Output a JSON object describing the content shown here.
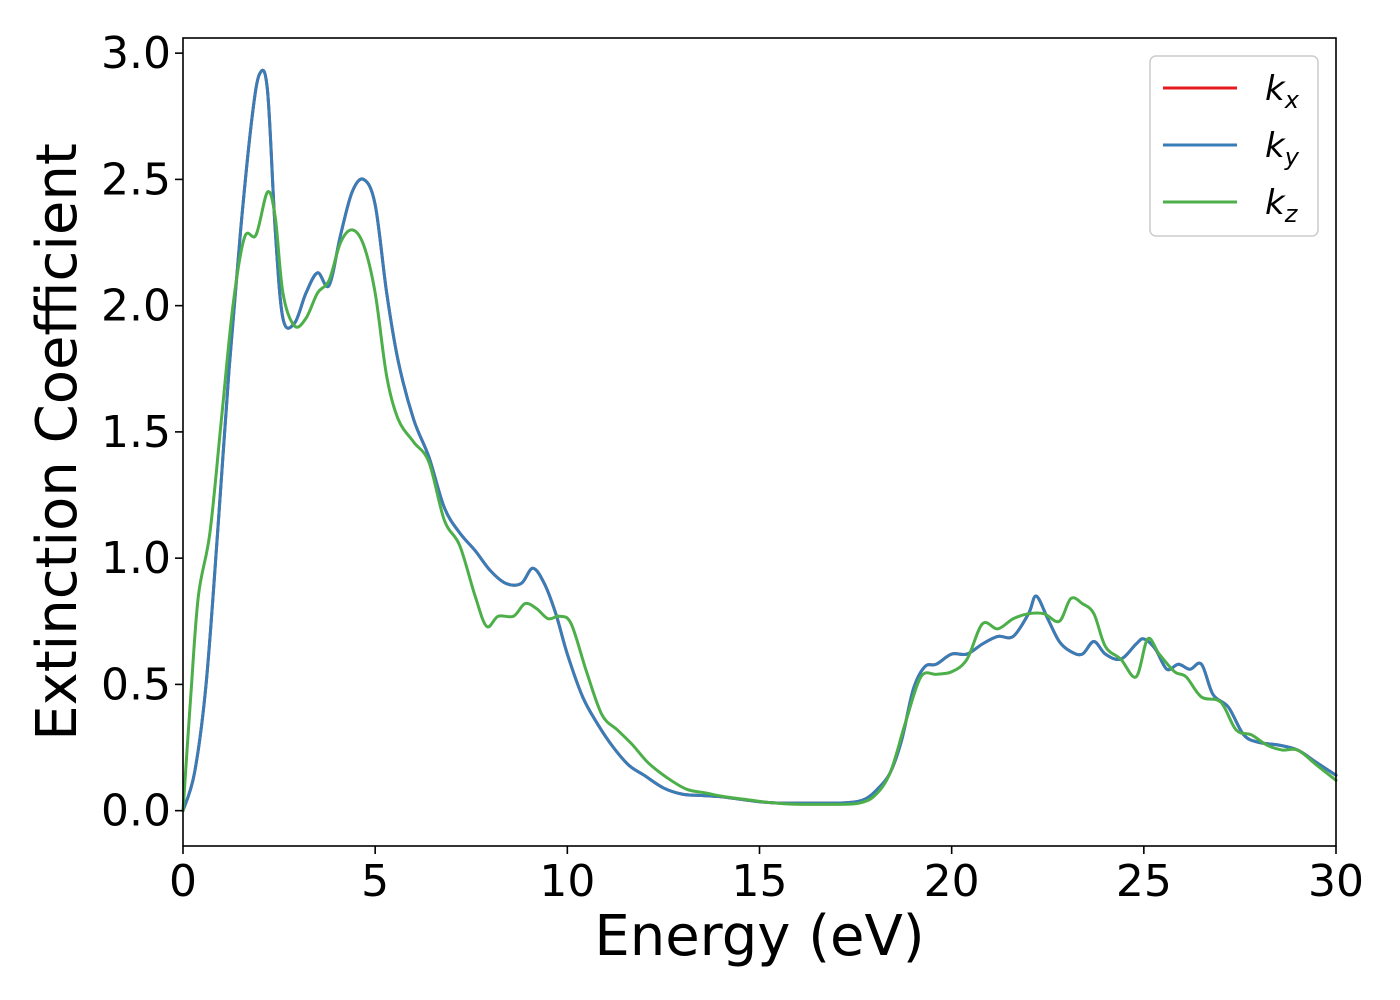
{
  "chart_data": {
    "type": "line",
    "title": "",
    "xlabel": "Energy (eV)",
    "ylabel": "Extinction Coefficient",
    "xlim": [
      0,
      30
    ],
    "ylim": [
      -0.14,
      3.06
    ],
    "xticks": [
      0,
      5,
      10,
      15,
      20,
      25,
      30
    ],
    "yticks": [
      0.0,
      0.5,
      1.0,
      1.5,
      2.0,
      2.5,
      3.0
    ],
    "xtick_labels": [
      "0",
      "5",
      "10",
      "15",
      "20",
      "25",
      "30"
    ],
    "ytick_labels": [
      "0.0",
      "0.5",
      "1.0",
      "1.5",
      "2.0",
      "2.5",
      "3.0"
    ],
    "grid": false,
    "legend_position": "top-right",
    "series": [
      {
        "name": "k_x",
        "legend_base": "k",
        "legend_sub": "x",
        "color": "#e41a1c",
        "x": [
          0,
          0.3,
          0.6,
          0.9,
          1.2,
          1.5,
          1.8,
          2.0,
          2.2,
          2.4,
          2.6,
          2.9,
          3.2,
          3.5,
          3.8,
          4.1,
          4.4,
          4.7,
          5.0,
          5.3,
          5.6,
          6.0,
          6.4,
          6.8,
          7.2,
          7.6,
          8.0,
          8.4,
          8.8,
          9.1,
          9.4,
          9.7,
          10.0,
          10.4,
          10.8,
          11.2,
          11.6,
          12.0,
          12.5,
          13.0,
          13.5,
          14.0,
          14.5,
          15.0,
          15.5,
          16.0,
          16.5,
          17.0,
          17.5,
          17.8,
          18.1,
          18.4,
          18.7,
          19.0,
          19.3,
          19.6,
          20.0,
          20.4,
          20.8,
          21.2,
          21.6,
          22.0,
          22.2,
          22.5,
          22.8,
          23.1,
          23.4,
          23.7,
          24.0,
          24.4,
          24.8,
          25.0,
          25.3,
          25.6,
          25.9,
          26.2,
          26.5,
          26.8,
          27.2,
          27.6,
          28.0,
          28.5,
          29.0,
          29.5,
          30.0
        ],
        "y": [
          0.0,
          0.15,
          0.5,
          1.1,
          1.75,
          2.3,
          2.75,
          2.92,
          2.85,
          2.3,
          1.95,
          1.93,
          2.05,
          2.13,
          2.08,
          2.28,
          2.45,
          2.5,
          2.4,
          2.05,
          1.78,
          1.55,
          1.4,
          1.2,
          1.1,
          1.03,
          0.95,
          0.9,
          0.9,
          0.96,
          0.9,
          0.78,
          0.62,
          0.45,
          0.34,
          0.25,
          0.18,
          0.14,
          0.09,
          0.065,
          0.06,
          0.055,
          0.045,
          0.035,
          0.03,
          0.03,
          0.03,
          0.03,
          0.035,
          0.05,
          0.09,
          0.15,
          0.28,
          0.48,
          0.57,
          0.58,
          0.62,
          0.62,
          0.66,
          0.69,
          0.69,
          0.78,
          0.85,
          0.76,
          0.67,
          0.63,
          0.62,
          0.67,
          0.62,
          0.6,
          0.66,
          0.68,
          0.64,
          0.56,
          0.58,
          0.56,
          0.58,
          0.46,
          0.41,
          0.3,
          0.27,
          0.26,
          0.24,
          0.19,
          0.14
        ]
      },
      {
        "name": "k_y",
        "legend_base": "k",
        "legend_sub": "y",
        "color": "#377eb8",
        "x": [
          0,
          0.3,
          0.6,
          0.9,
          1.2,
          1.5,
          1.8,
          2.0,
          2.2,
          2.4,
          2.6,
          2.9,
          3.2,
          3.5,
          3.8,
          4.1,
          4.4,
          4.7,
          5.0,
          5.3,
          5.6,
          6.0,
          6.4,
          6.8,
          7.2,
          7.6,
          8.0,
          8.4,
          8.8,
          9.1,
          9.4,
          9.7,
          10.0,
          10.4,
          10.8,
          11.2,
          11.6,
          12.0,
          12.5,
          13.0,
          13.5,
          14.0,
          14.5,
          15.0,
          15.5,
          16.0,
          16.5,
          17.0,
          17.5,
          17.8,
          18.1,
          18.4,
          18.7,
          19.0,
          19.3,
          19.6,
          20.0,
          20.4,
          20.8,
          21.2,
          21.6,
          22.0,
          22.2,
          22.5,
          22.8,
          23.1,
          23.4,
          23.7,
          24.0,
          24.4,
          24.8,
          25.0,
          25.3,
          25.6,
          25.9,
          26.2,
          26.5,
          26.8,
          27.2,
          27.6,
          28.0,
          28.5,
          29.0,
          29.5,
          30.0
        ],
        "y": [
          0.0,
          0.15,
          0.5,
          1.1,
          1.75,
          2.3,
          2.75,
          2.92,
          2.85,
          2.3,
          1.95,
          1.93,
          2.05,
          2.13,
          2.08,
          2.28,
          2.45,
          2.5,
          2.4,
          2.05,
          1.78,
          1.55,
          1.4,
          1.2,
          1.1,
          1.03,
          0.95,
          0.9,
          0.9,
          0.96,
          0.9,
          0.78,
          0.62,
          0.45,
          0.34,
          0.25,
          0.18,
          0.14,
          0.09,
          0.065,
          0.06,
          0.055,
          0.045,
          0.035,
          0.03,
          0.03,
          0.03,
          0.03,
          0.035,
          0.05,
          0.09,
          0.15,
          0.28,
          0.48,
          0.57,
          0.58,
          0.62,
          0.62,
          0.66,
          0.69,
          0.69,
          0.78,
          0.85,
          0.76,
          0.67,
          0.63,
          0.62,
          0.67,
          0.62,
          0.6,
          0.66,
          0.68,
          0.64,
          0.56,
          0.58,
          0.56,
          0.58,
          0.46,
          0.41,
          0.3,
          0.27,
          0.26,
          0.24,
          0.19,
          0.14
        ]
      },
      {
        "name": "k_z",
        "legend_base": "k",
        "legend_sub": "z",
        "color": "#4daf4a",
        "x": [
          0,
          0.2,
          0.4,
          0.7,
          1.0,
          1.3,
          1.6,
          1.9,
          2.2,
          2.4,
          2.6,
          2.9,
          3.2,
          3.5,
          3.8,
          4.1,
          4.4,
          4.7,
          5.0,
          5.3,
          5.6,
          6.0,
          6.4,
          6.8,
          7.2,
          7.6,
          7.9,
          8.2,
          8.6,
          8.9,
          9.2,
          9.5,
          9.8,
          10.1,
          10.5,
          10.9,
          11.3,
          11.7,
          12.1,
          12.6,
          13.1,
          13.6,
          14.1,
          14.6,
          15.1,
          15.6,
          16.1,
          16.6,
          17.1,
          17.6,
          18.0,
          18.4,
          18.8,
          19.2,
          19.6,
          20.0,
          20.4,
          20.8,
          21.2,
          21.6,
          22.0,
          22.4,
          22.8,
          23.1,
          23.4,
          23.7,
          24.0,
          24.4,
          24.8,
          25.1,
          25.4,
          25.8,
          26.1,
          26.5,
          27.0,
          27.4,
          27.8,
          28.2,
          28.6,
          29.0,
          29.5,
          30.0
        ],
        "y": [
          0.0,
          0.45,
          0.85,
          1.1,
          1.55,
          2.0,
          2.27,
          2.28,
          2.45,
          2.35,
          2.05,
          1.92,
          1.95,
          2.05,
          2.1,
          2.25,
          2.3,
          2.24,
          2.05,
          1.72,
          1.55,
          1.46,
          1.38,
          1.15,
          1.05,
          0.85,
          0.73,
          0.77,
          0.77,
          0.82,
          0.8,
          0.76,
          0.77,
          0.74,
          0.55,
          0.38,
          0.32,
          0.26,
          0.19,
          0.13,
          0.085,
          0.07,
          0.055,
          0.045,
          0.035,
          0.028,
          0.025,
          0.025,
          0.025,
          0.03,
          0.06,
          0.15,
          0.35,
          0.53,
          0.54,
          0.55,
          0.6,
          0.74,
          0.72,
          0.76,
          0.78,
          0.78,
          0.75,
          0.84,
          0.82,
          0.78,
          0.65,
          0.6,
          0.53,
          0.68,
          0.62,
          0.55,
          0.53,
          0.45,
          0.43,
          0.32,
          0.3,
          0.26,
          0.24,
          0.24,
          0.18,
          0.12
        ]
      }
    ]
  }
}
